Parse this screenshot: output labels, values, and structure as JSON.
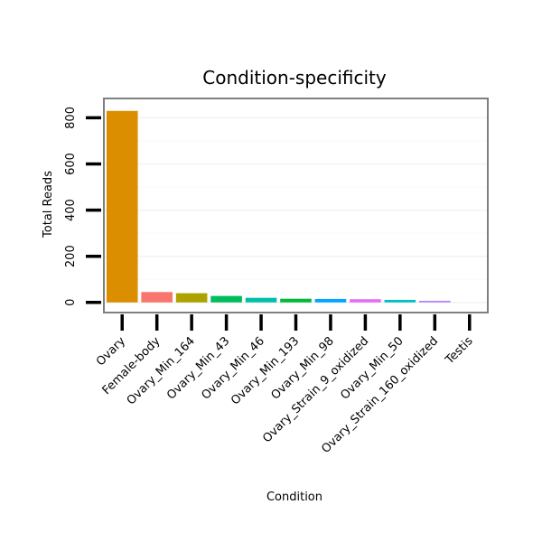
{
  "chart_data": {
    "type": "bar",
    "title": "Condition-specificity",
    "xlabel": "Condition",
    "ylabel": "Total Reads",
    "ylim": [
      -40,
      880
    ],
    "yticks": [
      0,
      200,
      400,
      600,
      800
    ],
    "grid": true,
    "legend": "none",
    "categories": [
      "Ovary",
      "Female-body",
      "Ovary_Min_164",
      "Ovary_Min_43",
      "Ovary_Min_46",
      "Ovary_Min_193",
      "Ovary_Min_98",
      "Ovary_Strain_9_oxidized",
      "Ovary_Min_50",
      "Ovary_Strain_160_oxidized",
      "Testis"
    ],
    "values": [
      830,
      45,
      40,
      28,
      20,
      16,
      15,
      14,
      11,
      7,
      0
    ],
    "colors": [
      "#DB8E00",
      "#F8766D",
      "#AEA200",
      "#00BD5C",
      "#00C1A7",
      "#00BA38",
      "#00A6FF",
      "#E76BF3",
      "#00BFC4",
      "#B385FF",
      "#FF63B6"
    ]
  }
}
